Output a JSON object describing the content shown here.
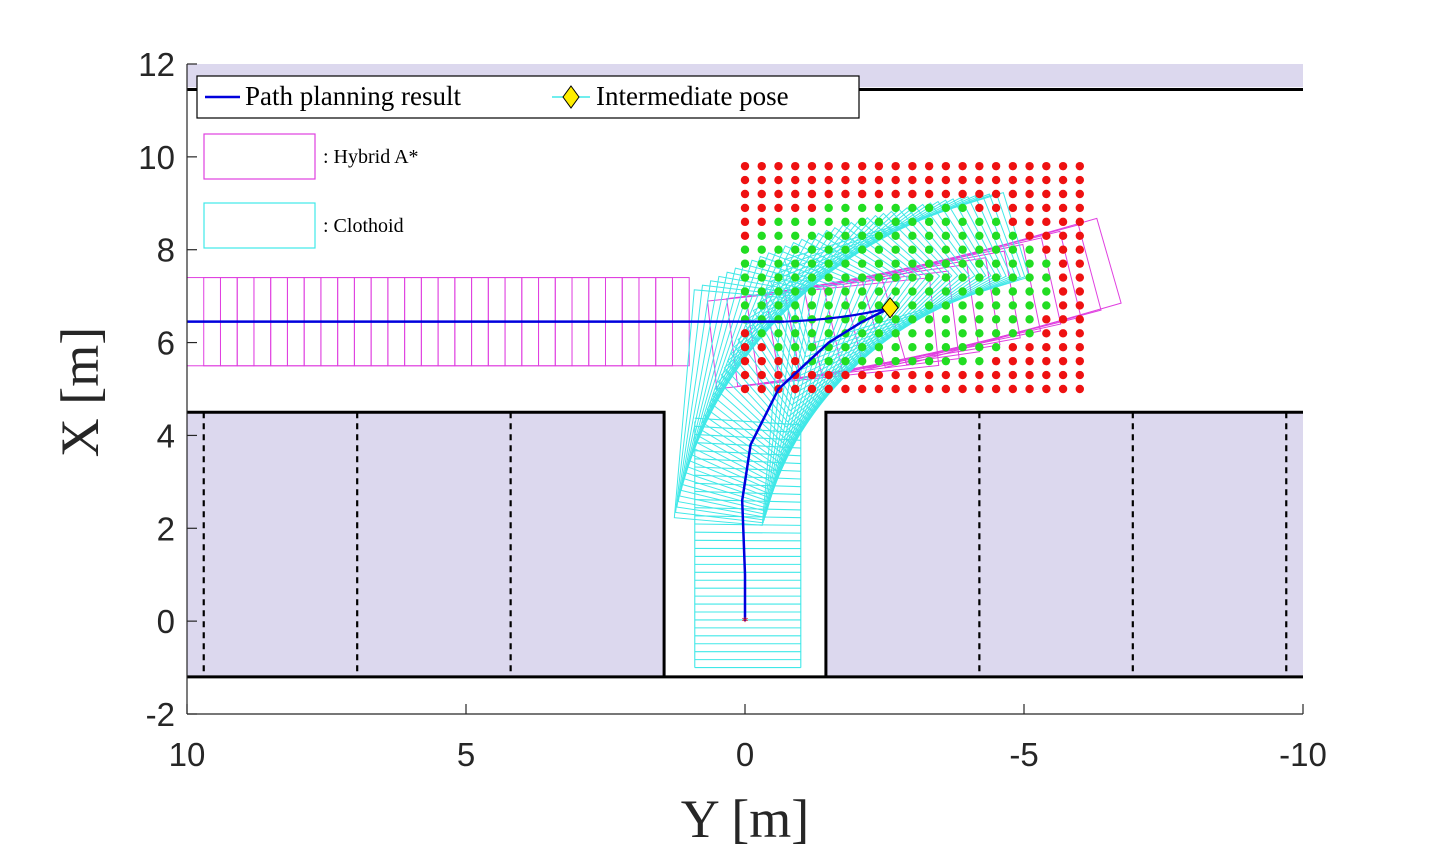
{
  "chart_data": {
    "type": "scatter",
    "xlabel": "Y [m]",
    "ylabel": "X [m]",
    "xlim": [
      10,
      -10
    ],
    "ylim": [
      -2,
      12
    ],
    "x_reversed": true,
    "xticks": [
      10,
      5,
      0,
      -5,
      -10
    ],
    "xtick_labels": [
      "10",
      "5",
      "0",
      "-5",
      "-10"
    ],
    "yticks": [
      -2,
      0,
      2,
      4,
      6,
      8,
      10,
      12
    ],
    "ytick_labels": [
      "-2",
      "0",
      "2",
      "4",
      "6",
      "8",
      "10",
      "12"
    ],
    "grid": false,
    "legend": {
      "placement": "top-left",
      "entries": [
        {
          "label": "Path planning result",
          "color": "#0000dd",
          "marker": "line"
        },
        {
          "label": "Intermediate pose",
          "color": "#ffee00",
          "marker": "diamond-on-cyan-line"
        }
      ]
    },
    "annotations": [
      {
        "label": ": Hybrid A*",
        "color": "#e040e0"
      },
      {
        "label": ": Clothoid",
        "color": "#40e8e8"
      }
    ],
    "colors": {
      "parking_area": "#dcd8ee",
      "hybrid_astar": "#e040e0",
      "clothoid": "#40e8e8",
      "path": "#0000dd",
      "infeasible": "#ee1111",
      "feasible": "#22dd22",
      "pose_marker": "#ffee00"
    },
    "environment": {
      "top_area": {
        "x_range": [
          11.5,
          12
        ]
      },
      "top_wall_x": 11.45,
      "bottom_wall_x": -1.2,
      "curb_x": 4.5,
      "slot_left_edge_y": 1.45,
      "slot_right_edge_y": -1.45,
      "parking_block_x": [
        -1.2,
        4.5
      ],
      "divider_lines_y": [
        9.7,
        6.95,
        4.2,
        -4.2,
        -6.95,
        -9.7
      ]
    },
    "start_point": {
      "y": 0,
      "x": 0
    },
    "intermediate_pose": {
      "y": -2.6,
      "x": 6.75
    },
    "path": {
      "hybrid_segment": {
        "y_from": 10,
        "y_to": -0.7,
        "x": 6.45
      },
      "curve": [
        {
          "y": 0,
          "x": 0
        },
        {
          "y": 0,
          "x": 1
        },
        {
          "y": 0.05,
          "x": 2.6
        },
        {
          "y": -0.1,
          "x": 3.8
        },
        {
          "y": -0.6,
          "x": 5.0
        },
        {
          "y": -1.5,
          "x": 6.0
        },
        {
          "y": -2.1,
          "x": 6.45
        },
        {
          "y": -2.6,
          "x": 6.75
        }
      ]
    },
    "candidate_grid": {
      "y_range": [
        0,
        -6
      ],
      "x_range": [
        5,
        9.8
      ],
      "spacing_y": 0.3,
      "spacing_x": 0.3,
      "feasible_region": {
        "y_range": [
          0,
          -6
        ],
        "x_range": [
          5,
          9.2
        ]
      }
    },
    "vehicle_footprints": {
      "hybrid_count": 29,
      "hybrid_x_range": [
        5.5,
        7.4
      ],
      "clothoid_straight_count": 32,
      "clothoid_straight_y_range": [
        -1.0,
        0.9
      ],
      "clothoid_straight_x_range": [
        -1.0,
        4.3
      ]
    }
  }
}
